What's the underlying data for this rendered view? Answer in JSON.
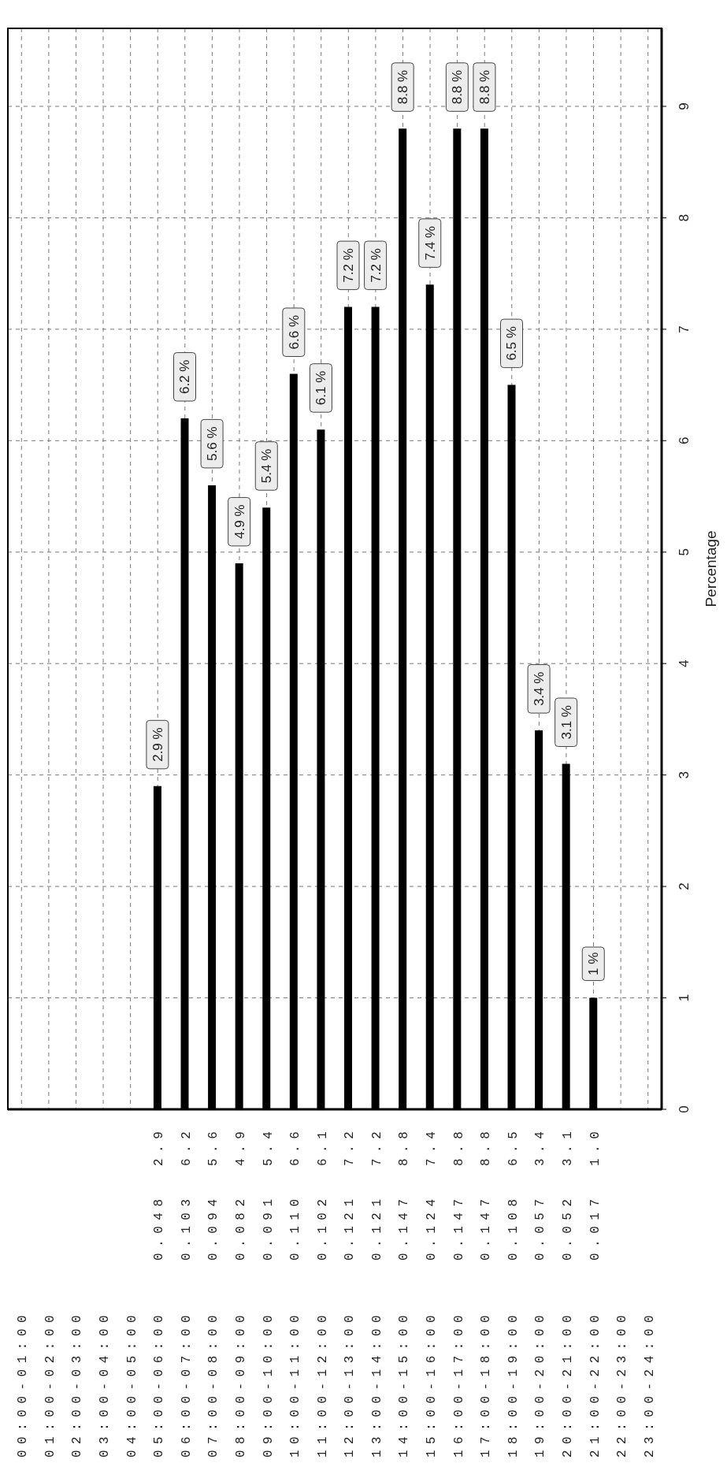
{
  "chart_data": {
    "type": "bar",
    "y2label": "Percentage",
    "categories": [
      "00:00-01:00",
      "01:00-02:00",
      "02:00-03:00",
      "03:00-04:00",
      "04:00-05:00",
      "05:00-06:00",
      "06:00-07:00",
      "07:00-08:00",
      "08:00-09:00",
      "09:00-10:00",
      "10:00-11:00",
      "11:00-12:00",
      "12:00-13:00",
      "13:00-14:00",
      "14:00-15:00",
      "15:00-16:00",
      "16:00-17:00",
      "17:00-18:00",
      "18:00-19:00",
      "19:00-20:00",
      "20:00-21:00",
      "21:00-22:00",
      "22:00-23:00",
      "23:00-24:00"
    ],
    "series": [
      {
        "color": "#000000",
        "axis": "y2",
        "values": [
          null,
          null,
          null,
          null,
          null,
          2.9,
          6.2,
          5.6,
          4.9,
          5.4,
          6.6,
          6.1,
          7.2,
          7.2,
          8.8,
          7.4,
          8.8,
          8.8,
          6.5,
          3.4,
          3.1,
          1.0,
          null,
          null
        ],
        "value_labels": [
          null,
          null,
          null,
          null,
          null,
          "2.9 %",
          "6.2 %",
          "5.6 %",
          "4.9 %",
          "5.4 %",
          "6.6 %",
          "6.1 %",
          "7.2 %",
          "7.2 %",
          "8.8 %",
          "7.4 %",
          "8.8 %",
          "8.8 %",
          "6.5 %",
          "3.4 %",
          "3.1 %",
          "1 %",
          null,
          null
        ]
      }
    ],
    "y2lim": [
      0,
      9.7
    ],
    "y2ticks": [
      0,
      1,
      2,
      3,
      4,
      5,
      6,
      7,
      8,
      9
    ],
    "grid": true,
    "annotations": [
      "0.048",
      "2.9",
      "0.103",
      "6.2",
      "0.094",
      "5.6",
      "0.082",
      "4.9",
      "0.091",
      "5.4",
      "0.110",
      "6.6",
      "0.102",
      "6.1",
      "0.121",
      "7.2",
      "0.121",
      "7.2",
      "0.147",
      "8.8",
      "0.124",
      "7.4",
      "0.147",
      "8.8",
      "0.147",
      "8.8",
      "0.108",
      "6.5",
      "0.057",
      "3.4",
      "0.052",
      "3.1",
      "0.017",
      "1.0"
    ]
  }
}
